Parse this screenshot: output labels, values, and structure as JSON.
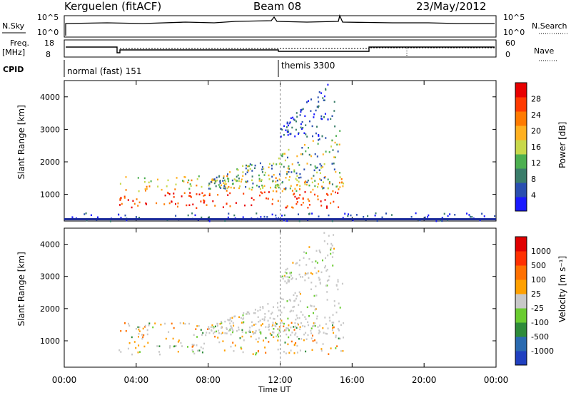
{
  "header": {
    "station": "Kerguelen (fitACF)",
    "beam": "Beam 08",
    "date": "23/May/2012"
  },
  "nsky_panel": {
    "left_label": "N.Sky",
    "left_ticks": [
      "10^5",
      "10^0"
    ],
    "right_label": "N.Search",
    "right_ticks": [
      "10^5",
      "10^0"
    ]
  },
  "freq_panel": {
    "left_label_1": "Freq.",
    "left_label_2": "[MHz]",
    "left_ticks": [
      "18",
      "8"
    ],
    "right_label": "Nave",
    "right_ticks": [
      "60",
      "0"
    ]
  },
  "cpid_panel": {
    "label": "CPID",
    "programs": [
      "normal (fast) 151",
      "themis 3300"
    ]
  },
  "time_axis": {
    "label": "Time UT",
    "ticks": [
      "00:00",
      "04:00",
      "08:00",
      "12:00",
      "16:00",
      "20:00",
      "00:00"
    ]
  },
  "colors": {
    "power_scale": [
      "#1a1aff",
      "#2a4fb0",
      "#3a7d6a",
      "#4caf50",
      "#c8d84a",
      "#ffb020",
      "#ff7a00",
      "#ff3a00",
      "#e80000"
    ],
    "velocity_scale": [
      "#2040c0",
      "#2a6ab0",
      "#2e8b3a",
      "#6acc30",
      "#c8c8c8",
      "#ffa000",
      "#ff7000",
      "#ff3000",
      "#e00000"
    ]
  },
  "chart_data": [
    {
      "type": "heatmap",
      "title": "Power",
      "xlabel": "Time UT",
      "ylabel": "Slant Range [km]",
      "xlim": [
        "00:00",
        "24:00"
      ],
      "ylim": [
        180,
        4500
      ],
      "y_ticks": [
        "1000",
        "2000",
        "3000",
        "4000"
      ],
      "colorbar_label": "Power [dB]",
      "colorbar_ticks": [
        "28",
        "24",
        "20",
        "16",
        "12",
        "8",
        "4"
      ],
      "colorbar_range": [
        0,
        30
      ],
      "scatter_regions": [
        {
          "t_start": 3.0,
          "t_end": 15.5,
          "r_low": 600,
          "r_high": 1600,
          "level": "high"
        },
        {
          "t_start": 8.0,
          "t_end": 15.5,
          "r_low": 1200,
          "r_high": 2800,
          "level": "medium"
        },
        {
          "t_start": 12.0,
          "t_end": 15.0,
          "r_low": 2800,
          "r_high": 4400,
          "level": "low"
        },
        {
          "t_start": 0.0,
          "t_end": 24.0,
          "r_low": 200,
          "r_high": 450,
          "level": "low"
        }
      ]
    },
    {
      "type": "heatmap",
      "title": "Velocity",
      "xlabel": "Time UT",
      "ylabel": "Slant Range [km]",
      "xlim": [
        "00:00",
        "24:00"
      ],
      "ylim": [
        180,
        4500
      ],
      "y_ticks": [
        "1000",
        "2000",
        "3000",
        "4000"
      ],
      "colorbar_label": "Velocity [m s⁻¹]",
      "colorbar_ticks": [
        "1000",
        "500",
        "100",
        "25",
        "-25",
        "-100",
        "-500",
        "-1000"
      ],
      "colorbar_range": [
        -1000,
        1000
      ],
      "scatter_regions": [
        {
          "t_start": 3.0,
          "t_end": 15.5,
          "r_low": 600,
          "r_high": 1600,
          "level": "mixed"
        },
        {
          "t_start": 8.0,
          "t_end": 15.5,
          "r_low": 1200,
          "r_high": 2800,
          "level": "gray"
        },
        {
          "t_start": 12.0,
          "t_end": 15.0,
          "r_low": 2800,
          "r_high": 4400,
          "level": "gray"
        }
      ]
    }
  ]
}
